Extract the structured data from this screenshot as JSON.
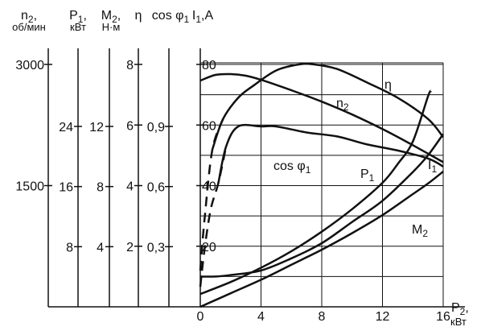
{
  "chart_data": {
    "type": "line",
    "title": "",
    "xlabel": {
      "symbol": "P",
      "sub": "2",
      "unit": "кВт"
    },
    "x_ticks": [
      "0",
      "4",
      "8",
      "12",
      "16"
    ],
    "xlim": [
      0,
      16
    ],
    "grid": true,
    "axes": [
      {
        "id": "n2",
        "symbol": "n",
        "sub": "2",
        "suffix": ",",
        "unit": "об/мин",
        "ticks": [
          {
            "label": "3000",
            "value": 3000
          },
          {
            "label": "1500",
            "value": 1500
          }
        ]
      },
      {
        "id": "P1",
        "symbol": "P",
        "sub": "1",
        "suffix": ",",
        "unit": "кВт",
        "ticks": [
          {
            "label": "24",
            "value": 24
          },
          {
            "label": "16",
            "value": 16
          },
          {
            "label": "8",
            "value": 8
          }
        ]
      },
      {
        "id": "M2",
        "symbol": "M",
        "sub": "2",
        "suffix": ",",
        "unit": "Н·м",
        "ticks": [
          {
            "label": "12",
            "value": 12
          },
          {
            "label": "8",
            "value": 8
          },
          {
            "label": "4",
            "value": 4
          }
        ]
      },
      {
        "id": "eta",
        "symbol": "η",
        "sub": "",
        "suffix": "",
        "unit": "",
        "ticks": [
          {
            "label": "8",
            "value": 8
          },
          {
            "label": "6",
            "value": 6
          },
          {
            "label": "4",
            "value": 4
          },
          {
            "label": "2",
            "value": 2
          }
        ]
      },
      {
        "id": "cos",
        "symbol": "cos φ",
        "sub": "1",
        "suffix": "",
        "unit": "",
        "ticks": [
          {
            "label": "0,9",
            "value": 0.9
          },
          {
            "label": "0,6",
            "value": 0.6
          },
          {
            "label": "0,3",
            "value": 0.3
          }
        ]
      },
      {
        "id": "I1",
        "symbol": "I",
        "sub": "1",
        "suffix": ",A",
        "unit": "",
        "ticks": [
          {
            "label": "80",
            "value": 80
          },
          {
            "label": "60",
            "value": 60
          },
          {
            "label": "40",
            "value": 40
          },
          {
            "label": "20",
            "value": 20
          }
        ]
      }
    ],
    "series": [
      {
        "name": "η",
        "sub": "",
        "unit_axis": "eta",
        "x": [
          0,
          0.3,
          0.8,
          1.5,
          2.5,
          3.5,
          5,
          6.5,
          7.5,
          9,
          11,
          13,
          15,
          16
        ],
        "y": [
          1.2,
          3.0,
          5.2,
          6.2,
          6.9,
          7.3,
          7.8,
          8.0,
          8.0,
          7.85,
          7.4,
          6.9,
          6.2,
          5.6
        ],
        "dashed_to": 1.7
      },
      {
        "name": "n",
        "sub": "2",
        "unit_axis": "n2",
        "x": [
          0,
          1,
          2,
          3,
          4,
          6,
          8,
          10,
          12,
          14,
          16
        ],
        "y": [
          2800,
          2870,
          2880,
          2860,
          2810,
          2680,
          2540,
          2380,
          2200,
          2000,
          1790
        ]
      },
      {
        "name": "cos φ",
        "sub": "1",
        "unit_axis": "cos",
        "x": [
          0,
          0.3,
          0.7,
          1.2,
          1.7,
          2.5,
          4,
          5,
          7,
          9,
          11,
          13,
          15,
          16
        ],
        "y": [
          0.1,
          0.3,
          0.49,
          0.62,
          0.8,
          0.9,
          0.9,
          0.9,
          0.87,
          0.85,
          0.81,
          0.78,
          0.74,
          0.7
        ],
        "dashed_to": 1.7
      },
      {
        "name": "P",
        "sub": "1",
        "unit_axis": "P1",
        "x": [
          0,
          2,
          4,
          6,
          8,
          10,
          12,
          13,
          14,
          15,
          15.2
        ],
        "y": [
          1.7,
          3.3,
          5.2,
          7.4,
          10,
          13,
          16.5,
          19,
          22,
          28,
          28.7
        ]
      },
      {
        "name": "I",
        "sub": "1",
        "unit_axis": "I1",
        "x": [
          0,
          1,
          2,
          4,
          6,
          8,
          10,
          12,
          14,
          15,
          16
        ],
        "y": [
          10,
          10,
          10.5,
          12,
          16,
          21,
          28,
          35,
          44.5,
          50,
          57
        ]
      },
      {
        "name": "M",
        "sub": "2",
        "unit_axis": "M2",
        "x": [
          0,
          2,
          4,
          6,
          8,
          10,
          12,
          14,
          15,
          16
        ],
        "y": [
          0,
          0.9,
          1.8,
          2.8,
          3.8,
          4.9,
          6.1,
          7.5,
          8.2,
          9.0
        ]
      }
    ]
  }
}
